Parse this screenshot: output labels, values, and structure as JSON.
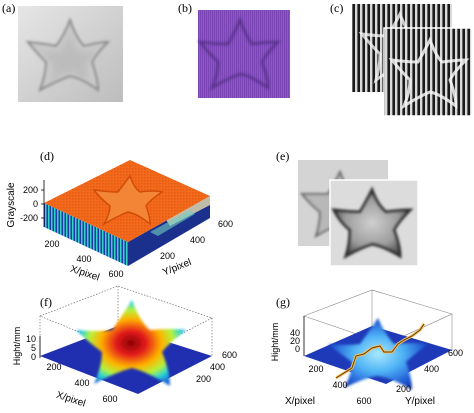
{
  "figure": {
    "panels": {
      "a": {
        "label": "(a)"
      },
      "b": {
        "label": "(b)"
      },
      "c": {
        "label": "(c)"
      },
      "d": {
        "label": "(d)",
        "z_title": "Grayscale",
        "x_title": "X/pixel",
        "y_title": "Y/pixel",
        "z_ticks": [
          "200",
          "0",
          "-200"
        ],
        "x_ticks": [
          "200",
          "400",
          "600"
        ],
        "y_ticks": [
          "200",
          "400",
          "600"
        ]
      },
      "e": {
        "label": "(e)"
      },
      "f": {
        "label": "(f)",
        "z_title": "Hight/mm",
        "x_title": "X/pixel",
        "z_ticks": [
          "10",
          "5",
          "0"
        ],
        "x_ticks": [
          "200",
          "400",
          "600"
        ],
        "y_ticks": [
          "200",
          "400",
          "600"
        ]
      },
      "g": {
        "label": "(g)",
        "z_title": "Hight/mm",
        "x_title": "X/pixel",
        "y_title": "Y/pixel",
        "z_ticks": [
          "40",
          "20",
          "0"
        ],
        "x_ticks": [
          "200",
          "400",
          "600"
        ],
        "y_ticks": [
          "200",
          "400",
          "600"
        ]
      }
    }
  }
}
